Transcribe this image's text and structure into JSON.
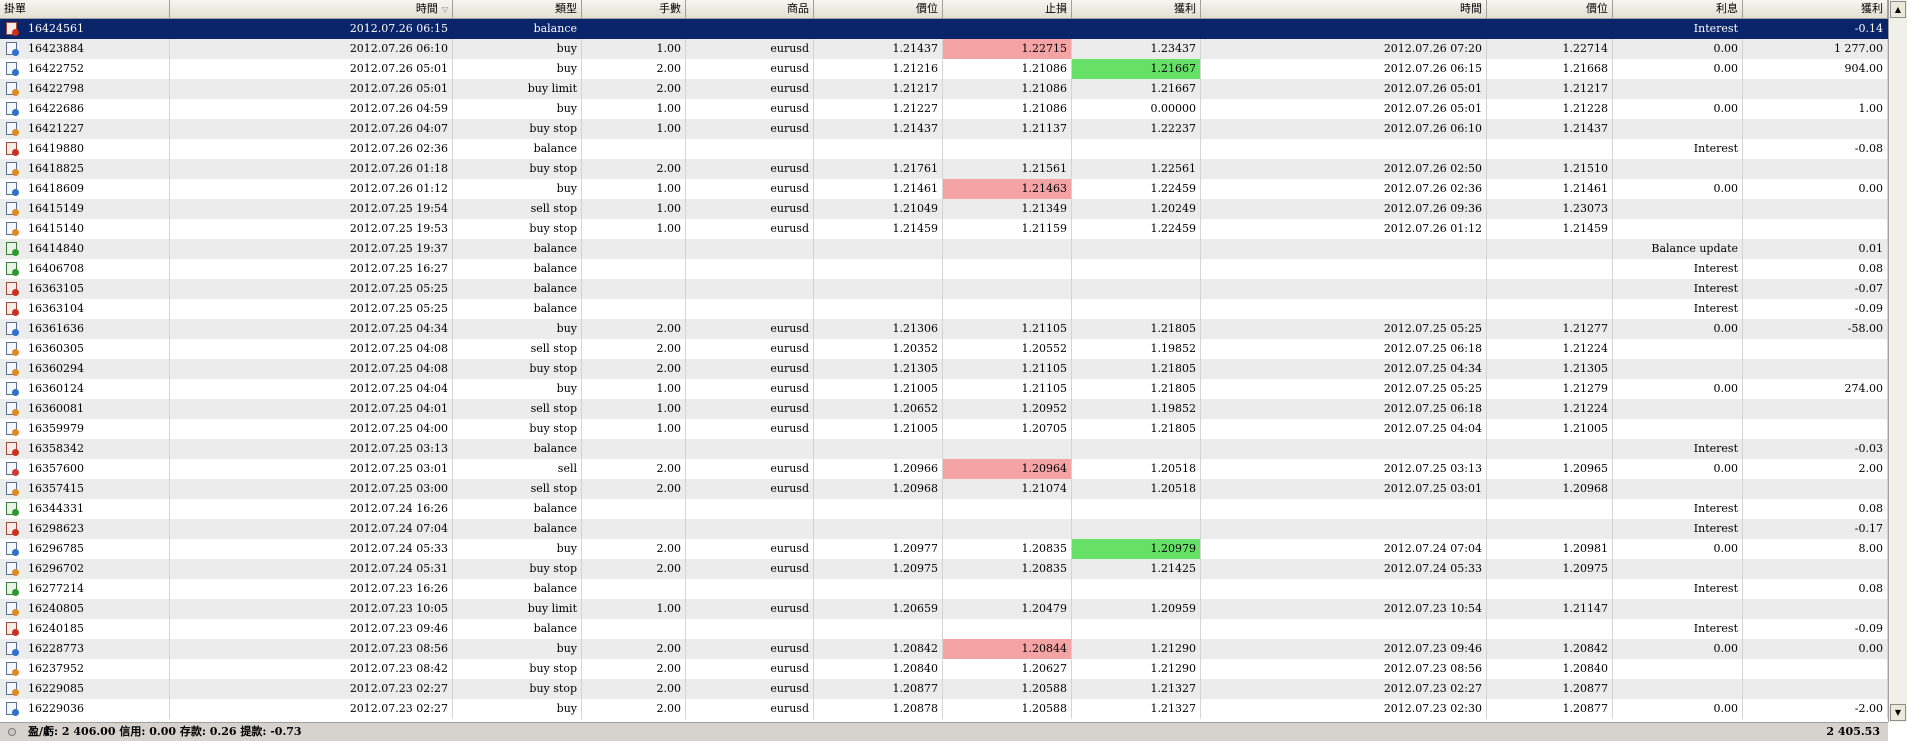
{
  "columns": [
    "掛單",
    "時間",
    "類型",
    "手數",
    "商品",
    "價位",
    "止損",
    "獲利",
    "時間",
    "價位",
    "利息",
    "獲利"
  ],
  "rows": [
    {
      "t": "16424561",
      "time": "2012.07.26 06:15",
      "type": "balance",
      "lots": "",
      "sym": "",
      "price": "",
      "sl": "",
      "tp": "",
      "ctime": "",
      "cprice": "",
      "swap": "Interest",
      "profit": "-0.14"
    },
    {
      "t": "16423884",
      "time": "2012.07.26 06:10",
      "type": "buy",
      "lots": "1.00",
      "sym": "eurusd",
      "price": "1.21437",
      "sl": "1.22715",
      "tp": "1.23437",
      "ctime": "2012.07.26 07:20",
      "cprice": "1.22714",
      "swap": "0.00",
      "profit": "1 277.00"
    },
    {
      "t": "16422752",
      "time": "2012.07.26 05:01",
      "type": "buy",
      "lots": "2.00",
      "sym": "eurusd",
      "price": "1.21216",
      "sl": "1.21086",
      "tp": "1.21667",
      "ctime": "2012.07.26 06:15",
      "cprice": "1.21668",
      "swap": "0.00",
      "profit": "904.00"
    },
    {
      "t": "16422798",
      "time": "2012.07.26 05:01",
      "type": "buy limit",
      "lots": "2.00",
      "sym": "eurusd",
      "price": "1.21217",
      "sl": "1.21086",
      "tp": "1.21667",
      "ctime": "2012.07.26 05:01",
      "cprice": "1.21217",
      "swap": "",
      "profit": ""
    },
    {
      "t": "16422686",
      "time": "2012.07.26 04:59",
      "type": "buy",
      "lots": "1.00",
      "sym": "eurusd",
      "price": "1.21227",
      "sl": "1.21086",
      "tp": "0.00000",
      "ctime": "2012.07.26 05:01",
      "cprice": "1.21228",
      "swap": "0.00",
      "profit": "1.00"
    },
    {
      "t": "16421227",
      "time": "2012.07.26 04:07",
      "type": "buy stop",
      "lots": "1.00",
      "sym": "eurusd",
      "price": "1.21437",
      "sl": "1.21137",
      "tp": "1.22237",
      "ctime": "2012.07.26 06:10",
      "cprice": "1.21437",
      "swap": "",
      "profit": ""
    },
    {
      "t": "16419880",
      "time": "2012.07.26 02:36",
      "type": "balance",
      "lots": "",
      "sym": "",
      "price": "",
      "sl": "",
      "tp": "",
      "ctime": "",
      "cprice": "",
      "swap": "Interest",
      "profit": "-0.08"
    },
    {
      "t": "16418825",
      "time": "2012.07.26 01:18",
      "type": "buy stop",
      "lots": "2.00",
      "sym": "eurusd",
      "price": "1.21761",
      "sl": "1.21561",
      "tp": "1.22561",
      "ctime": "2012.07.26 02:50",
      "cprice": "1.21510",
      "swap": "",
      "profit": ""
    },
    {
      "t": "16418609",
      "time": "2012.07.26 01:12",
      "type": "buy",
      "lots": "1.00",
      "sym": "eurusd",
      "price": "1.21461",
      "sl": "1.21463",
      "tp": "1.22459",
      "ctime": "2012.07.26 02:36",
      "cprice": "1.21461",
      "swap": "0.00",
      "profit": "0.00"
    },
    {
      "t": "16415149",
      "time": "2012.07.25 19:54",
      "type": "sell stop",
      "lots": "1.00",
      "sym": "eurusd",
      "price": "1.21049",
      "sl": "1.21349",
      "tp": "1.20249",
      "ctime": "2012.07.26 09:36",
      "cprice": "1.23073",
      "swap": "",
      "profit": ""
    },
    {
      "t": "16415140",
      "time": "2012.07.25 19:53",
      "type": "buy stop",
      "lots": "1.00",
      "sym": "eurusd",
      "price": "1.21459",
      "sl": "1.21159",
      "tp": "1.22459",
      "ctime": "2012.07.26 01:12",
      "cprice": "1.21459",
      "swap": "",
      "profit": ""
    },
    {
      "t": "16414840",
      "time": "2012.07.25 19:37",
      "type": "balance",
      "lots": "",
      "sym": "",
      "price": "",
      "sl": "",
      "tp": "",
      "ctime": "",
      "cprice": "",
      "swap": "Balance update",
      "profit": "0.01"
    },
    {
      "t": "16406708",
      "time": "2012.07.25 16:27",
      "type": "balance",
      "lots": "",
      "sym": "",
      "price": "",
      "sl": "",
      "tp": "",
      "ctime": "",
      "cprice": "",
      "swap": "Interest",
      "profit": "0.08"
    },
    {
      "t": "16363105",
      "time": "2012.07.25 05:25",
      "type": "balance",
      "lots": "",
      "sym": "",
      "price": "",
      "sl": "",
      "tp": "",
      "ctime": "",
      "cprice": "",
      "swap": "Interest",
      "profit": "-0.07"
    },
    {
      "t": "16363104",
      "time": "2012.07.25 05:25",
      "type": "balance",
      "lots": "",
      "sym": "",
      "price": "",
      "sl": "",
      "tp": "",
      "ctime": "",
      "cprice": "",
      "swap": "Interest",
      "profit": "-0.09"
    },
    {
      "t": "16361636",
      "time": "2012.07.25 04:34",
      "type": "buy",
      "lots": "2.00",
      "sym": "eurusd",
      "price": "1.21306",
      "sl": "1.21105",
      "tp": "1.21805",
      "ctime": "2012.07.25 05:25",
      "cprice": "1.21277",
      "swap": "0.00",
      "profit": "-58.00"
    },
    {
      "t": "16360305",
      "time": "2012.07.25 04:08",
      "type": "sell stop",
      "lots": "2.00",
      "sym": "eurusd",
      "price": "1.20352",
      "sl": "1.20552",
      "tp": "1.19852",
      "ctime": "2012.07.25 06:18",
      "cprice": "1.21224",
      "swap": "",
      "profit": ""
    },
    {
      "t": "16360294",
      "time": "2012.07.25 04:08",
      "type": "buy stop",
      "lots": "2.00",
      "sym": "eurusd",
      "price": "1.21305",
      "sl": "1.21105",
      "tp": "1.21805",
      "ctime": "2012.07.25 04:34",
      "cprice": "1.21305",
      "swap": "",
      "profit": ""
    },
    {
      "t": "16360124",
      "time": "2012.07.25 04:04",
      "type": "buy",
      "lots": "1.00",
      "sym": "eurusd",
      "price": "1.21005",
      "sl": "1.21105",
      "tp": "1.21805",
      "ctime": "2012.07.25 05:25",
      "cprice": "1.21279",
      "swap": "0.00",
      "profit": "274.00"
    },
    {
      "t": "16360081",
      "time": "2012.07.25 04:01",
      "type": "sell stop",
      "lots": "1.00",
      "sym": "eurusd",
      "price": "1.20652",
      "sl": "1.20952",
      "tp": "1.19852",
      "ctime": "2012.07.25 06:18",
      "cprice": "1.21224",
      "swap": "",
      "profit": ""
    },
    {
      "t": "16359979",
      "time": "2012.07.25 04:00",
      "type": "buy stop",
      "lots": "1.00",
      "sym": "eurusd",
      "price": "1.21005",
      "sl": "1.20705",
      "tp": "1.21805",
      "ctime": "2012.07.25 04:04",
      "cprice": "1.21005",
      "swap": "",
      "profit": ""
    },
    {
      "t": "16358342",
      "time": "2012.07.25 03:13",
      "type": "balance",
      "lots": "",
      "sym": "",
      "price": "",
      "sl": "",
      "tp": "",
      "ctime": "",
      "cprice": "",
      "swap": "Interest",
      "profit": "-0.03"
    },
    {
      "t": "16357600",
      "time": "2012.07.25 03:01",
      "type": "sell",
      "lots": "2.00",
      "sym": "eurusd",
      "price": "1.20966",
      "sl": "1.20964",
      "tp": "1.20518",
      "ctime": "2012.07.25 03:13",
      "cprice": "1.20965",
      "swap": "0.00",
      "profit": "2.00"
    },
    {
      "t": "16357415",
      "time": "2012.07.25 03:00",
      "type": "sell stop",
      "lots": "2.00",
      "sym": "eurusd",
      "price": "1.20968",
      "sl": "1.21074",
      "tp": "1.20518",
      "ctime": "2012.07.25 03:01",
      "cprice": "1.20968",
      "swap": "",
      "profit": ""
    },
    {
      "t": "16344331",
      "time": "2012.07.24 16:26",
      "type": "balance",
      "lots": "",
      "sym": "",
      "price": "",
      "sl": "",
      "tp": "",
      "ctime": "",
      "cprice": "",
      "swap": "Interest",
      "profit": "0.08"
    },
    {
      "t": "16298623",
      "time": "2012.07.24 07:04",
      "type": "balance",
      "lots": "",
      "sym": "",
      "price": "",
      "sl": "",
      "tp": "",
      "ctime": "",
      "cprice": "",
      "swap": "Interest",
      "profit": "-0.17"
    },
    {
      "t": "16296785",
      "time": "2012.07.24 05:33",
      "type": "buy",
      "lots": "2.00",
      "sym": "eurusd",
      "price": "1.20977",
      "sl": "1.20835",
      "tp": "1.20979",
      "ctime": "2012.07.24 07:04",
      "cprice": "1.20981",
      "swap": "0.00",
      "profit": "8.00"
    },
    {
      "t": "16296702",
      "time": "2012.07.24 05:31",
      "type": "buy stop",
      "lots": "2.00",
      "sym": "eurusd",
      "price": "1.20975",
      "sl": "1.20835",
      "tp": "1.21425",
      "ctime": "2012.07.24 05:33",
      "cprice": "1.20975",
      "swap": "",
      "profit": ""
    },
    {
      "t": "16277214",
      "time": "2012.07.23 16:26",
      "type": "balance",
      "lots": "",
      "sym": "",
      "price": "",
      "sl": "",
      "tp": "",
      "ctime": "",
      "cprice": "",
      "swap": "Interest",
      "profit": "0.08"
    },
    {
      "t": "16240805",
      "time": "2012.07.23 10:05",
      "type": "buy limit",
      "lots": "1.00",
      "sym": "eurusd",
      "price": "1.20659",
      "sl": "1.20479",
      "tp": "1.20959",
      "ctime": "2012.07.23 10:54",
      "cprice": "1.21147",
      "swap": "",
      "profit": ""
    },
    {
      "t": "16240185",
      "time": "2012.07.23 09:46",
      "type": "balance",
      "lots": "",
      "sym": "",
      "price": "",
      "sl": "",
      "tp": "",
      "ctime": "",
      "cprice": "",
      "swap": "Interest",
      "profit": "-0.09"
    },
    {
      "t": "16228773",
      "time": "2012.07.23 08:56",
      "type": "buy",
      "lots": "2.00",
      "sym": "eurusd",
      "price": "1.20842",
      "sl": "1.20844",
      "tp": "1.21290",
      "ctime": "2012.07.23 09:46",
      "cprice": "1.20842",
      "swap": "0.00",
      "profit": "0.00"
    },
    {
      "t": "16237952",
      "time": "2012.07.23 08:42",
      "type": "buy stop",
      "lots": "2.00",
      "sym": "eurusd",
      "price": "1.20840",
      "sl": "1.20627",
      "tp": "1.21290",
      "ctime": "2012.07.23 08:56",
      "cprice": "1.20840",
      "swap": "",
      "profit": ""
    },
    {
      "t": "16229085",
      "time": "2012.07.23 02:27",
      "type": "buy stop",
      "lots": "2.00",
      "sym": "eurusd",
      "price": "1.20877",
      "sl": "1.20588",
      "tp": "1.21327",
      "ctime": "2012.07.23 02:27",
      "cprice": "1.20877",
      "swap": "",
      "profit": ""
    },
    {
      "t": "16229036",
      "time": "2012.07.23 02:27",
      "type": "buy",
      "lots": "2.00",
      "sym": "eurusd",
      "price": "1.20878",
      "sl": "1.20588",
      "tp": "1.21327",
      "ctime": "2012.07.23 02:30",
      "cprice": "1.20877",
      "swap": "0.00",
      "profit": "-2.00"
    }
  ],
  "highlights": {
    "sl_red": [
      "16423884",
      "16418609",
      "16357600",
      "16228773"
    ],
    "tp_green": [
      "16422752",
      "16296785"
    ]
  },
  "balance_up": [
    "16414840",
    "16406708",
    "16344331",
    "16277214"
  ],
  "status": {
    "summary": "盈/虧: 2 406.00  信用: 0.00  存款: 0.26  提款: -0.73",
    "total": "2 405.53"
  },
  "scroll": {
    "up": "▲",
    "down": "▼"
  },
  "sort_indicator": "▽",
  "colors": {
    "selection": "#0a246a",
    "stop_loss_hit": "#f4a4a4",
    "take_profit_hit": "#66e066"
  }
}
